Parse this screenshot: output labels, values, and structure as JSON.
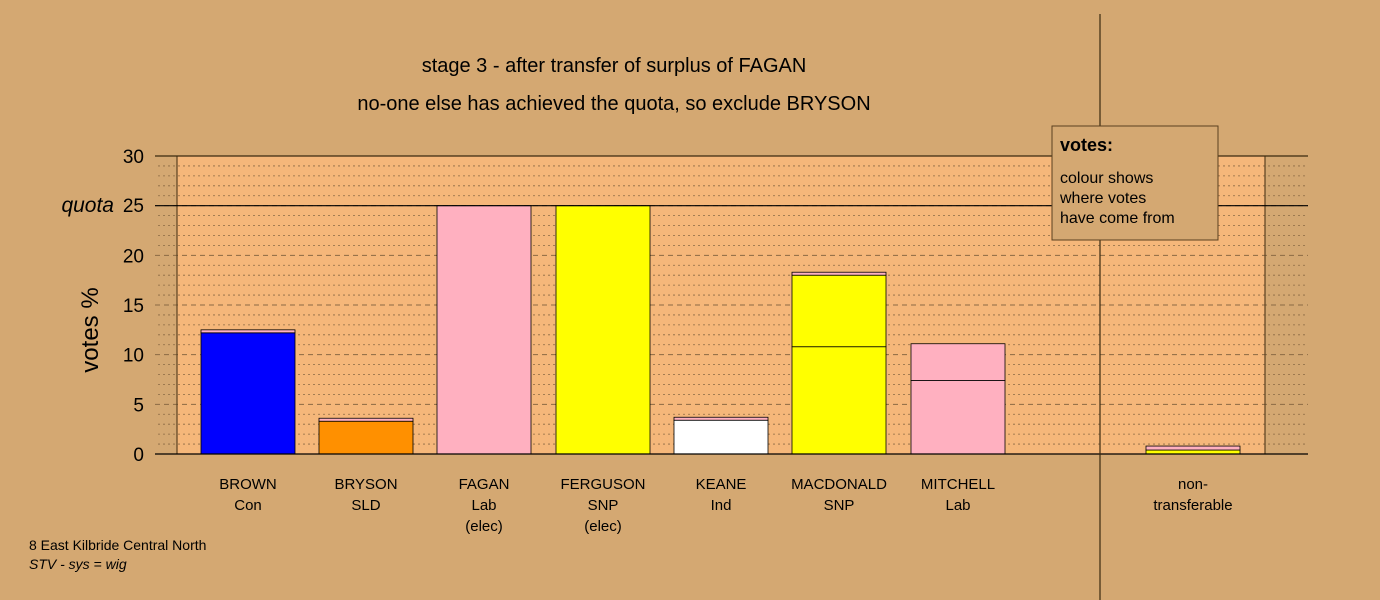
{
  "chart_data": {
    "type": "bar",
    "stacked": true,
    "title": "stage 3 - after transfer of surplus of FAGAN",
    "subtitle": "no-one else has achieved the quota, so exclude BRYSON",
    "ylabel": "votes %",
    "quota_label": "quota",
    "quota_value": 25,
    "ylim": [
      0,
      30
    ],
    "y_ticks": [
      0,
      5,
      10,
      15,
      20,
      25,
      30
    ],
    "y_tick_labels": [
      "0",
      "5",
      "10",
      "15",
      "20",
      "",
      "30"
    ],
    "quota_tick_label": "25",
    "grid": true,
    "categories": [
      {
        "name": "BROWN",
        "party": "Con",
        "note": "",
        "segments": [
          {
            "value": 12.2,
            "color": "#0000ff"
          },
          {
            "value": 0.3,
            "color": "#ffb0c0"
          }
        ]
      },
      {
        "name": "BRYSON",
        "party": "SLD",
        "note": "",
        "segments": [
          {
            "value": 3.3,
            "color": "#ff9000"
          },
          {
            "value": 0.3,
            "color": "#ffb0c0"
          }
        ]
      },
      {
        "name": "FAGAN",
        "party": "Lab",
        "note": "(elec)",
        "segments": [
          {
            "value": 25.0,
            "color": "#ffb0c0"
          }
        ]
      },
      {
        "name": "FERGUSON",
        "party": "SNP",
        "note": "(elec)",
        "segments": [
          {
            "value": 25.0,
            "color": "#ffff00"
          }
        ]
      },
      {
        "name": "KEANE",
        "party": "Ind",
        "note": "",
        "segments": [
          {
            "value": 3.4,
            "color": "#ffffff"
          },
          {
            "value": 0.3,
            "color": "#ffb0c0"
          }
        ]
      },
      {
        "name": "MACDONALD",
        "party": "SNP",
        "note": "",
        "segments": [
          {
            "value": 10.8,
            "color": "#ffff00"
          },
          {
            "value": 7.2,
            "color": "#ffff00"
          },
          {
            "value": 0.3,
            "color": "#ffb0c0"
          }
        ]
      },
      {
        "name": "MITCHELL",
        "party": "Lab",
        "note": "",
        "segments": [
          {
            "value": 7.4,
            "color": "#ffb0c0"
          },
          {
            "value": 3.7,
            "color": "#ffb0c0"
          }
        ]
      }
    ],
    "nontransferable": {
      "label_line1": "non-",
      "label_line2": "transferable",
      "segments": [
        {
          "value": 0.4,
          "color": "#ffff00"
        },
        {
          "value": 0.4,
          "color": "#ffb0c0"
        }
      ]
    },
    "legend": {
      "title": "votes:",
      "lines": [
        "colour shows",
        "where votes",
        "have come from"
      ],
      "position": "top-right"
    },
    "footer": {
      "line1": "8 East Kilbride Central North",
      "line2": "STV - sys = wig"
    }
  },
  "colors": {
    "background": "#d4a872",
    "plot_background": "#f5b77a",
    "gridline": "#8a6a44"
  }
}
